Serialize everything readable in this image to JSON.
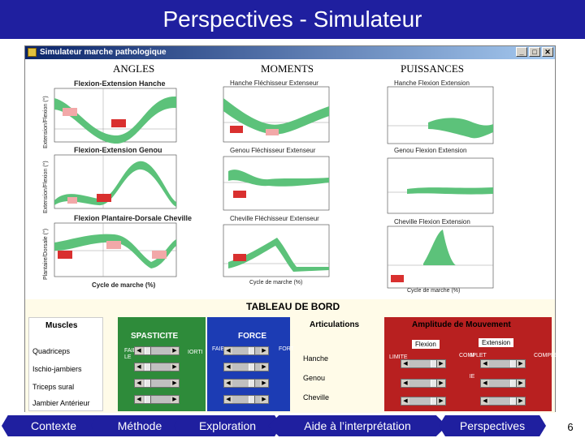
{
  "slide": {
    "title": "Perspectives - Simulateur",
    "page_number": "6"
  },
  "window": {
    "title": "Simulateur marche pathologique",
    "buttons": [
      "_",
      "□",
      "✕"
    ]
  },
  "columns": {
    "angles": "ANGLES",
    "moments": "MOMENTS",
    "puissances": "PUISSANCES"
  },
  "angles": {
    "plots": [
      {
        "title": "Flexion-Extension Hanche",
        "ylabel": "Extension/Flexion (°)",
        "yticks": [
          "60",
          "40",
          "20",
          "0",
          "-20"
        ]
      },
      {
        "title": "Flexion-Extension Genou",
        "ylabel": "Extension/Flexion (°)",
        "yticks": [
          "60",
          "40",
          "20",
          "0"
        ]
      },
      {
        "title": "Flexion Plantaire-Dorsale Cheville",
        "ylabel": "Plantaire/Dorsale (°)",
        "yticks": [
          "30",
          "20",
          "10",
          "0",
          "-10",
          "-20",
          "-30",
          "-40"
        ]
      }
    ],
    "xticks": [
      "0",
      "20",
      "40",
      "60",
      "80",
      "100"
    ],
    "xlabel": "Cycle de marche (%)"
  },
  "moments": {
    "plots": [
      {
        "title": "Hanche Fléchisseur Extenseur"
      },
      {
        "title": "Genou Fléchisseur Extenseur"
      },
      {
        "title": "Cheville Fléchisseur Extenseur"
      }
    ],
    "xlabel": "Cycle de marche (%)"
  },
  "puissances": {
    "plots": [
      {
        "title": "Hanche Flexion Extension"
      },
      {
        "title": "Genou Flexion Extension"
      },
      {
        "title": "Cheville Flexion Extension"
      }
    ],
    "xlabel": "Cycle de marche (%)"
  },
  "dashboard": {
    "title": "TABLEAU DE BORD",
    "muscles": {
      "title": "Muscles",
      "items": [
        "Quadriceps",
        "Ischio-jambiers",
        "Triceps sural",
        "Jambier Antérieur"
      ]
    },
    "spasticite": {
      "title": "SPASTICITE",
      "left": "FAIB\nLE",
      "right": "IORTI"
    },
    "force": {
      "title": "FORCE",
      "left": "FAIBLE",
      "right": "FORTE"
    },
    "articulations": {
      "title": "Articulations",
      "items": [
        "Hanche",
        "Genou",
        "Cheville"
      ]
    },
    "amplitude": {
      "title": "Amplitude de Mouvement",
      "flexion": "Flexion",
      "extension": "Extension",
      "limite": "LIMITE",
      "complet": "COMPLET",
      "m": "M",
      "ie": "IE"
    }
  },
  "nav": {
    "items": [
      "Contexte",
      "Méthode",
      "Exploration",
      "Aide à l’interprétation",
      "Perspectives"
    ]
  },
  "colors": {
    "band": "#5cc27a",
    "marker": "#d9302f",
    "marker_light": "#f2a8a8",
    "nav": "#1f1f9f"
  }
}
